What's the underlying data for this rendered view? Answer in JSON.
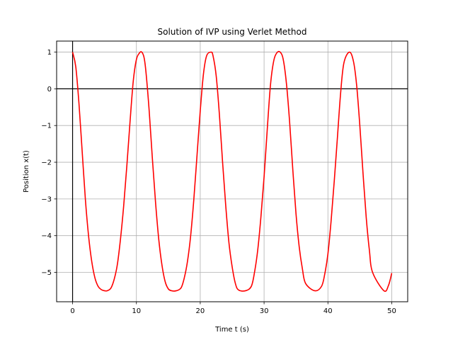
{
  "chart_data": {
    "type": "line",
    "title": "Solution of IVP using Verlet Method",
    "xlabel": "Time t (s)",
    "ylabel": "Position x(t)",
    "xlim": [
      -2.5,
      52.5
    ],
    "ylim": [
      -5.8,
      1.3
    ],
    "xticks": [
      0,
      10,
      20,
      30,
      40,
      50
    ],
    "xtick_labels": [
      "0",
      "10",
      "20",
      "30",
      "40",
      "50"
    ],
    "yticks": [
      1,
      0,
      -1,
      -2,
      -3,
      -4,
      -5
    ],
    "ytick_labels": [
      "1",
      "0",
      "−1",
      "−2",
      "−3",
      "−4",
      "−5"
    ],
    "grid": true,
    "reference_lines": {
      "x": 0,
      "y": 0,
      "color": "#000000"
    },
    "series": [
      {
        "color": "#ff0000",
        "x": [
          0,
          0.5,
          1.0,
          1.5,
          2.0,
          2.5,
          3.0,
          3.5,
          4.0,
          4.5,
          5.0,
          5.42,
          6.0,
          6.5,
          7.0,
          7.5,
          8.0,
          8.5,
          9.0,
          9.5,
          10.0,
          10.5,
          10.84,
          11.2,
          11.5,
          12.0,
          12.5,
          13.0,
          13.5,
          14.0,
          14.5,
          15.0,
          15.5,
          16.26,
          17.0,
          17.5,
          18.0,
          18.5,
          19.0,
          19.5,
          20.0,
          20.5,
          21.0,
          21.68,
          22.0,
          22.5,
          23.0,
          23.5,
          24.0,
          24.5,
          25.0,
          25.5,
          26.0,
          27.1,
          28.0,
          28.5,
          29.0,
          29.5,
          30.0,
          30.5,
          31.0,
          31.5,
          32.0,
          32.52,
          33.0,
          33.5,
          34.0,
          34.5,
          35.0,
          35.5,
          36.0,
          36.5,
          37.94,
          39.0,
          39.5,
          40.0,
          40.5,
          41.0,
          41.5,
          42.0,
          42.5,
          43.36,
          44.0,
          44.5,
          45.0,
          45.5,
          46.0,
          46.5,
          47.0,
          48.78,
          49.5,
          50.0
        ],
        "y": [
          1.0,
          0.6,
          -0.4,
          -1.7,
          -3.0,
          -4.0,
          -4.7,
          -5.15,
          -5.38,
          -5.47,
          -5.5,
          -5.5,
          -5.43,
          -5.2,
          -4.8,
          -4.1,
          -3.2,
          -2.1,
          -0.9,
          0.2,
          0.8,
          0.98,
          1.0,
          0.85,
          0.45,
          -0.6,
          -1.9,
          -3.1,
          -4.1,
          -4.8,
          -5.25,
          -5.45,
          -5.5,
          -5.5,
          -5.42,
          -5.15,
          -4.7,
          -4.0,
          -3.0,
          -1.8,
          -0.6,
          0.4,
          0.9,
          1.0,
          0.9,
          0.35,
          -0.7,
          -2.0,
          -3.2,
          -4.2,
          -4.85,
          -5.3,
          -5.48,
          -5.5,
          -5.38,
          -5.0,
          -4.4,
          -3.5,
          -2.4,
          -1.1,
          0.1,
          0.75,
          0.98,
          1.0,
          0.8,
          0.15,
          -0.9,
          -2.2,
          -3.4,
          -4.3,
          -4.9,
          -5.3,
          -5.5,
          -5.38,
          -5.05,
          -4.5,
          -3.6,
          -2.5,
          -1.3,
          -0.1,
          0.7,
          1.0,
          0.75,
          0.1,
          -1.0,
          -2.3,
          -3.5,
          -4.4,
          -5.0,
          -5.5,
          -5.35,
          -5.02
        ]
      }
    ]
  }
}
